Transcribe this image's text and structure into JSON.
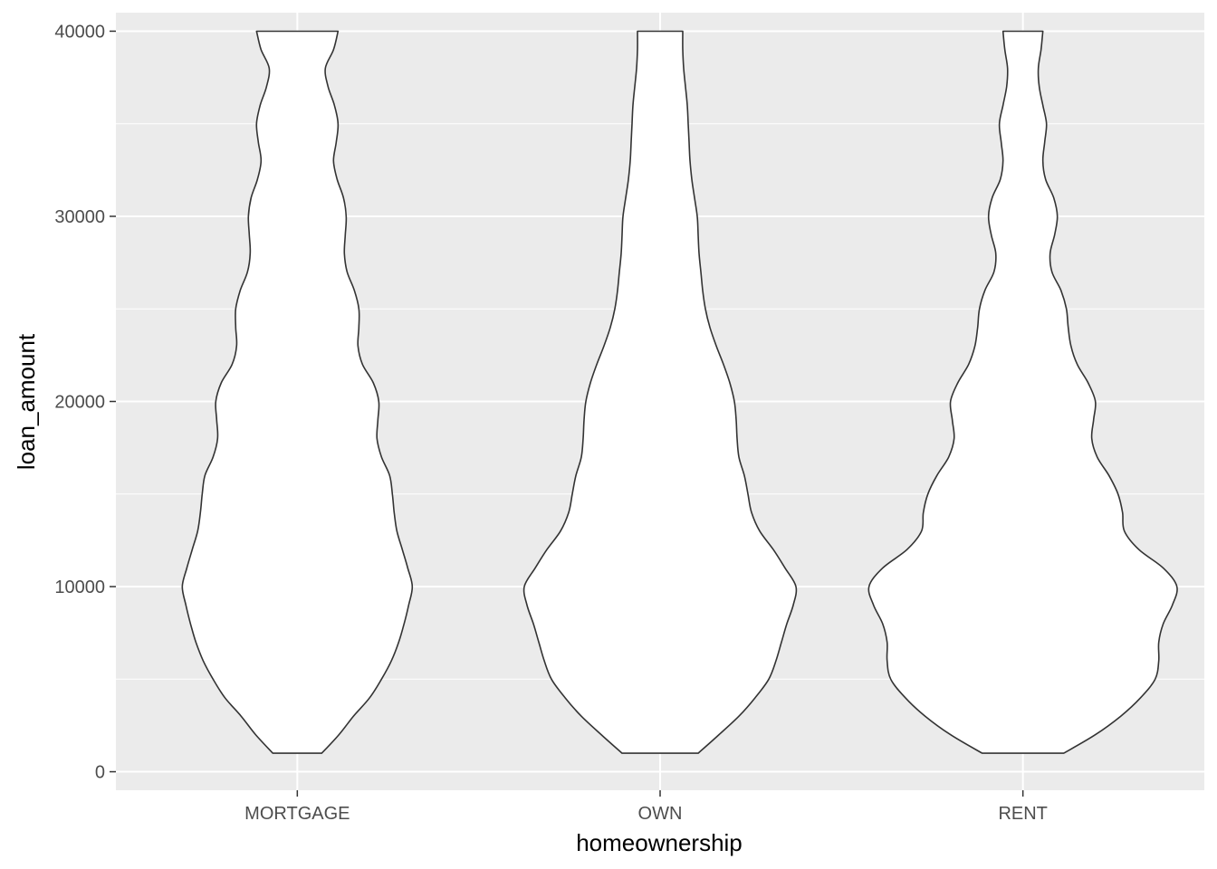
{
  "chart_data": {
    "type": "violin",
    "xlabel": "homeownership",
    "ylabel": "loan_amount",
    "categories": [
      "MORTGAGE",
      "OWN",
      "RENT"
    ],
    "ylim": [
      -1000,
      41000
    ],
    "yticks": [
      0,
      10000,
      20000,
      30000,
      40000
    ],
    "ytick_labels": [
      "0",
      "10000",
      "20000",
      "30000",
      "40000"
    ],
    "grid": true,
    "panel_background": "#ebebeb",
    "violin_fill": "#ffffff",
    "violin_stroke": "#333333",
    "series": [
      {
        "category": "MORTGAGE",
        "min": 1000,
        "max": 40000,
        "density_halfwidth": [
          [
            1000,
            27
          ],
          [
            2000,
            46
          ],
          [
            3000,
            62
          ],
          [
            4000,
            80
          ],
          [
            5000,
            93
          ],
          [
            6000,
            104
          ],
          [
            7000,
            112
          ],
          [
            8000,
            118
          ],
          [
            9000,
            123
          ],
          [
            10000,
            127
          ],
          [
            11000,
            122
          ],
          [
            12000,
            116
          ],
          [
            13000,
            110
          ],
          [
            14000,
            107
          ],
          [
            15000,
            105
          ],
          [
            16000,
            102
          ],
          [
            17000,
            93
          ],
          [
            18000,
            88
          ],
          [
            19000,
            89
          ],
          [
            20000,
            90
          ],
          [
            21000,
            84
          ],
          [
            22000,
            72
          ],
          [
            23000,
            67
          ],
          [
            24000,
            68
          ],
          [
            25000,
            68
          ],
          [
            26000,
            63
          ],
          [
            27000,
            55
          ],
          [
            28000,
            52
          ],
          [
            29000,
            53
          ],
          [
            30000,
            54
          ],
          [
            31000,
            51
          ],
          [
            32000,
            44
          ],
          [
            33000,
            40
          ],
          [
            34000,
            43
          ],
          [
            35000,
            45
          ],
          [
            36000,
            41
          ],
          [
            37000,
            34
          ],
          [
            38000,
            31
          ],
          [
            39000,
            40
          ],
          [
            40000,
            45
          ]
        ]
      },
      {
        "category": "OWN",
        "min": 1000,
        "max": 40000,
        "density_halfwidth": [
          [
            1000,
            42
          ],
          [
            2000,
            65
          ],
          [
            3000,
            87
          ],
          [
            4000,
            105
          ],
          [
            5000,
            120
          ],
          [
            6000,
            128
          ],
          [
            7000,
            134
          ],
          [
            8000,
            140
          ],
          [
            9000,
            147
          ],
          [
            10000,
            150
          ],
          [
            11000,
            138
          ],
          [
            12000,
            125
          ],
          [
            13000,
            110
          ],
          [
            14000,
            101
          ],
          [
            15000,
            97
          ],
          [
            16000,
            93
          ],
          [
            17000,
            87
          ],
          [
            18000,
            85
          ],
          [
            19000,
            84
          ],
          [
            20000,
            82
          ],
          [
            21000,
            77
          ],
          [
            22000,
            70
          ],
          [
            23000,
            62
          ],
          [
            24000,
            55
          ],
          [
            25000,
            50
          ],
          [
            26000,
            47
          ],
          [
            27000,
            45
          ],
          [
            28000,
            43
          ],
          [
            29000,
            42
          ],
          [
            30000,
            41
          ],
          [
            31000,
            38
          ],
          [
            32000,
            35
          ],
          [
            33000,
            33
          ],
          [
            34000,
            32
          ],
          [
            35000,
            31
          ],
          [
            36000,
            30
          ],
          [
            37000,
            28
          ],
          [
            38000,
            26
          ],
          [
            39000,
            25
          ],
          [
            40000,
            25
          ]
        ]
      },
      {
        "category": "RENT",
        "min": 1000,
        "max": 40000,
        "density_halfwidth": [
          [
            1000,
            45
          ],
          [
            2000,
            80
          ],
          [
            3000,
            108
          ],
          [
            4000,
            130
          ],
          [
            5000,
            146
          ],
          [
            6000,
            150
          ],
          [
            7000,
            150
          ],
          [
            8000,
            155
          ],
          [
            9000,
            165
          ],
          [
            10000,
            170
          ],
          [
            11000,
            155
          ],
          [
            12000,
            128
          ],
          [
            13000,
            112
          ],
          [
            14000,
            110
          ],
          [
            15000,
            105
          ],
          [
            16000,
            95
          ],
          [
            17000,
            82
          ],
          [
            18000,
            76
          ],
          [
            19000,
            78
          ],
          [
            20000,
            80
          ],
          [
            21000,
            72
          ],
          [
            22000,
            60
          ],
          [
            23000,
            53
          ],
          [
            24000,
            50
          ],
          [
            25000,
            48
          ],
          [
            26000,
            42
          ],
          [
            27000,
            32
          ],
          [
            28000,
            30
          ],
          [
            29000,
            35
          ],
          [
            30000,
            38
          ],
          [
            31000,
            34
          ],
          [
            32000,
            25
          ],
          [
            33000,
            22
          ],
          [
            34000,
            24
          ],
          [
            35000,
            26
          ],
          [
            36000,
            22
          ],
          [
            37000,
            18
          ],
          [
            38000,
            17
          ],
          [
            39000,
            20
          ],
          [
            40000,
            22
          ]
        ]
      }
    ]
  }
}
